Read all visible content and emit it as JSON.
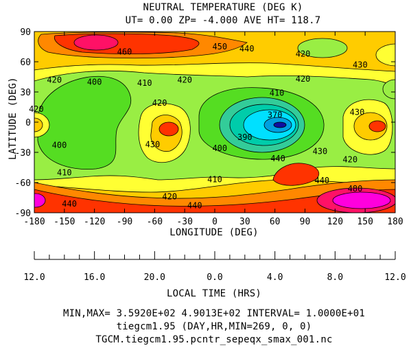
{
  "chart_data": {
    "type": "heatmap",
    "title": "NEUTRAL TEMPERATURE (DEG K)",
    "subtitle": "UT= 0.00 ZP= -4.000 AVE HT= 118.7",
    "xlabel": "LONGITUDE (DEG)",
    "ylabel": "LATITUDE (DEG)",
    "x_ticks": [
      "-180",
      "-150",
      "-120",
      "-90",
      "-60",
      "-30",
      "0",
      "30",
      "60",
      "90",
      "120",
      "150",
      "180"
    ],
    "y_ticks": [
      "90",
      "60",
      "30",
      "0",
      "-30",
      "-60",
      "-90"
    ],
    "xlim": [
      -180,
      180
    ],
    "ylim": [
      -90,
      90
    ],
    "local_time_label": "LOCAL TIME (HRS)",
    "local_time_ticks": [
      "12.0",
      "16.0",
      "20.0",
      "0.0",
      "4.0",
      "8.0",
      "12.0"
    ],
    "contour_labels": [
      {
        "text": "460",
        "lon": -90,
        "lat": 70
      },
      {
        "text": "450",
        "lon": 5,
        "lat": 75
      },
      {
        "text": "440",
        "lon": 32,
        "lat": 73
      },
      {
        "text": "420",
        "lon": 88,
        "lat": 68
      },
      {
        "text": "430",
        "lon": 145,
        "lat": 57
      },
      {
        "text": "420",
        "lon": -160,
        "lat": 42
      },
      {
        "text": "400",
        "lon": -120,
        "lat": 40
      },
      {
        "text": "410",
        "lon": -70,
        "lat": 39
      },
      {
        "text": "420",
        "lon": -30,
        "lat": 42
      },
      {
        "text": "420",
        "lon": 88,
        "lat": 43
      },
      {
        "text": "410",
        "lon": 62,
        "lat": 29
      },
      {
        "text": "420",
        "lon": -55,
        "lat": 19
      },
      {
        "text": "420",
        "lon": -178,
        "lat": 13
      },
      {
        "text": "370",
        "lon": 60,
        "lat": 7
      },
      {
        "text": "430",
        "lon": 142,
        "lat": 10
      },
      {
        "text": "390",
        "lon": 30,
        "lat": -15
      },
      {
        "text": "400",
        "lon": -155,
        "lat": -23
      },
      {
        "text": "430",
        "lon": -62,
        "lat": -22
      },
      {
        "text": "400",
        "lon": 5,
        "lat": -26
      },
      {
        "text": "430",
        "lon": 105,
        "lat": -29
      },
      {
        "text": "420",
        "lon": 135,
        "lat": -37
      },
      {
        "text": "440",
        "lon": 63,
        "lat": -36
      },
      {
        "text": "410",
        "lon": -150,
        "lat": -50
      },
      {
        "text": "410",
        "lon": 0,
        "lat": -57
      },
      {
        "text": "440",
        "lon": 107,
        "lat": -58
      },
      {
        "text": "480",
        "lon": 140,
        "lat": -66
      },
      {
        "text": "420",
        "lon": -45,
        "lat": -74
      },
      {
        "text": "440",
        "lon": -145,
        "lat": -81
      },
      {
        "text": "440",
        "lon": -20,
        "lat": -83
      }
    ],
    "value_range": {
      "min": 359.2,
      "max": 490.13
    },
    "contour_interval": 10,
    "colors": {
      "c350": "#0f0fa0",
      "c360": "#00e0ff",
      "c380": "#33cc99",
      "c400": "#55dd22",
      "c410": "#99ee44",
      "c420": "#ffff33",
      "c430": "#ffcc00",
      "c440": "#ff8800",
      "c450": "#ff3300",
      "c460": "#ff1166",
      "c480": "#ff00dd"
    }
  },
  "footer": {
    "minmax": "MIN,MAX=  3.5920E+02  4.9013E+02 INTERVAL=  1.0000E+01",
    "model": "tiegcm1.95  (DAY,HR,MIN=269, 0, 0)",
    "file": "TGCM.tiegcm1.95.pcntr_sepeqx_smax_001.nc"
  }
}
